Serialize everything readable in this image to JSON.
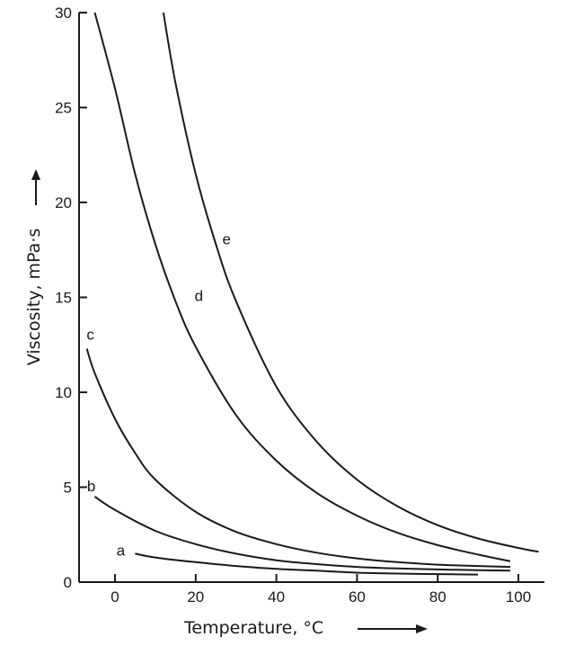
{
  "chart_data": {
    "type": "line",
    "xlabel": "Temperature, °C",
    "ylabel": "Viscosity, mPa·s",
    "xlim": [
      -10,
      105
    ],
    "ylim": [
      0,
      30
    ],
    "x_ticks": [
      0,
      20,
      40,
      60,
      80,
      100
    ],
    "y_ticks": [
      0,
      5,
      10,
      15,
      20,
      25,
      30
    ],
    "x_tick_labels": [
      "0",
      "20",
      "40",
      "60",
      "80",
      "100"
    ],
    "y_tick_labels": [
      "0",
      "5",
      "10",
      "15",
      "20",
      "25",
      "30"
    ],
    "grid": false,
    "series": [
      {
        "name": "a",
        "x": [
          5,
          10,
          20,
          30,
          40,
          50,
          60,
          70,
          80,
          90
        ],
        "y": [
          1.5,
          1.3,
          1.05,
          0.85,
          0.7,
          0.6,
          0.5,
          0.45,
          0.42,
          0.4
        ]
      },
      {
        "name": "b",
        "x": [
          -5,
          0,
          10,
          20,
          30,
          40,
          50,
          60,
          70,
          80,
          90,
          98
        ],
        "y": [
          4.5,
          3.8,
          2.7,
          2.0,
          1.5,
          1.15,
          0.95,
          0.8,
          0.72,
          0.67,
          0.63,
          0.6
        ]
      },
      {
        "name": "c",
        "x": [
          -7,
          -5,
          0,
          5,
          10,
          20,
          30,
          40,
          50,
          60,
          70,
          80,
          90,
          98
        ],
        "y": [
          12.3,
          11.0,
          8.6,
          6.8,
          5.4,
          3.7,
          2.65,
          2.0,
          1.55,
          1.25,
          1.05,
          0.92,
          0.85,
          0.8
        ]
      },
      {
        "name": "d",
        "x": [
          -5,
          0,
          5,
          10,
          15,
          20,
          30,
          40,
          50,
          60,
          70,
          80,
          90,
          98
        ],
        "y": [
          30,
          26,
          21.5,
          17.8,
          14.8,
          12.4,
          8.8,
          6.4,
          4.7,
          3.5,
          2.6,
          1.95,
          1.45,
          1.1
        ]
      },
      {
        "name": "e",
        "x": [
          12,
          15,
          20,
          25,
          30,
          40,
          50,
          60,
          70,
          80,
          90,
          100,
          105
        ],
        "y": [
          30,
          26.3,
          21.5,
          17.8,
          14.8,
          10.3,
          7.4,
          5.4,
          4.0,
          3.0,
          2.3,
          1.8,
          1.6
        ]
      }
    ]
  }
}
